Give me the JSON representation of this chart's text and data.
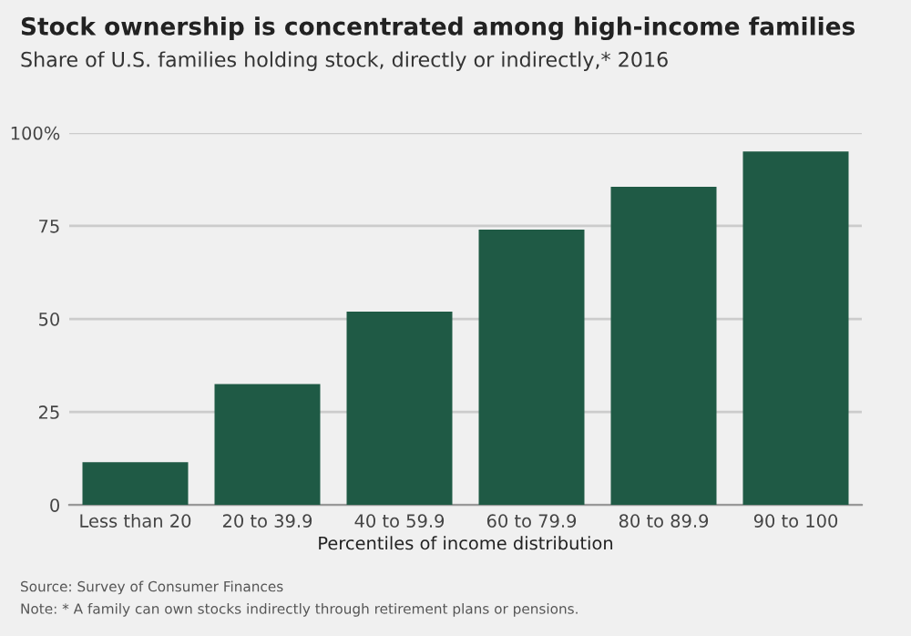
{
  "chart_data": {
    "type": "bar",
    "title": "Stock ownership is concentrated among high-income families",
    "subtitle": "Share of U.S. families holding stock, directly or indirectly,* 2016",
    "xlabel": "Percentiles of income distribution",
    "categories": [
      "Less than 20",
      "20 to 39.9",
      "40 to 59.9",
      "60 to 79.9",
      "80 to 89.9",
      "90 to 100"
    ],
    "values": [
      11.5,
      32.5,
      52,
      74,
      85.5,
      95
    ],
    "color": "#1f5a45",
    "ylim": [
      0,
      100
    ],
    "yticks": [
      0,
      25,
      50,
      75,
      {
        "value": 100,
        "label": "100%"
      }
    ],
    "grid": "y",
    "annotations": [
      "Source: Survey of Consumer Finances",
      "Note: * A family can own stocks indirectly through retirement plans or pensions."
    ]
  }
}
